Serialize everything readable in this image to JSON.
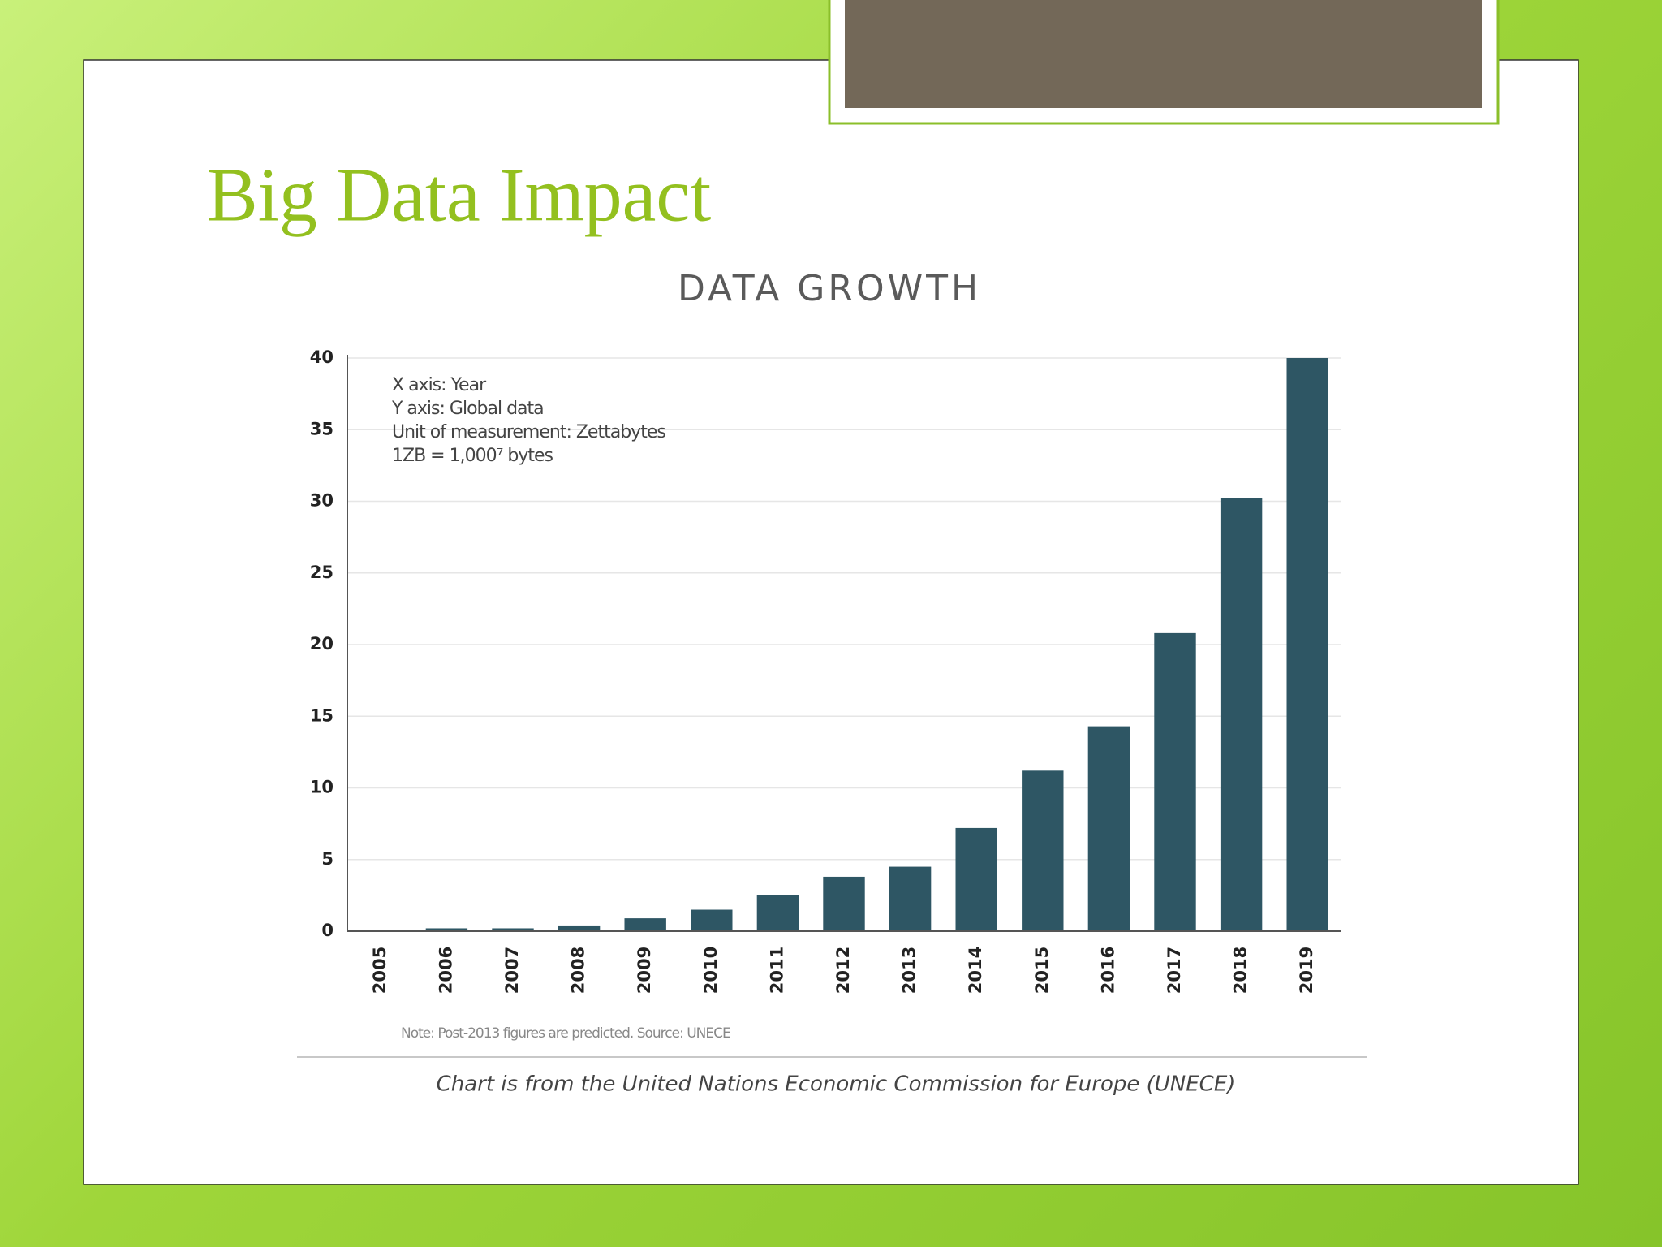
{
  "slide_title": "Big Data Impact",
  "chart_data": {
    "type": "bar",
    "title": "DATA GROWTH",
    "annotations": [
      "X axis: Year",
      "Y axis: Global data",
      "Unit of measurement: Zettabytes",
      "1ZB = 1,000⁷ bytes"
    ],
    "note": "Note: Post-2013 figures are predicted. Source: UNECE",
    "caption": "Chart is from the United Nations Economic Commission for Europe (UNECE)",
    "categories": [
      "2005",
      "2006",
      "2007",
      "2008",
      "2009",
      "2010",
      "2011",
      "2012",
      "2013",
      "2014",
      "2015",
      "2016",
      "2017",
      "2018",
      "2019"
    ],
    "values": [
      0.1,
      0.2,
      0.2,
      0.4,
      0.9,
      1.5,
      2.5,
      3.8,
      4.5,
      7.2,
      11.2,
      14.3,
      20.8,
      30.2,
      40
    ],
    "color": "#2e5664",
    "ylim": [
      0,
      40
    ],
    "yticks": [
      0,
      5,
      10,
      15,
      20,
      25,
      30,
      35,
      40
    ],
    "grid": true
  }
}
